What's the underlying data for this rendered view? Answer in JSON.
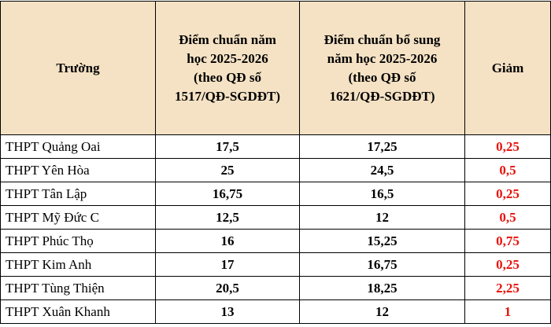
{
  "table": {
    "header": [
      [
        "Trường"
      ],
      [
        "Điểm chuẩn năm",
        "học 2025-2026",
        "(theo QĐ số",
        "1517/QĐ-SGDĐT)"
      ],
      [
        "Điểm chuẩn bổ sung",
        "năm học 2025-2026",
        "(theo QĐ số",
        "1621/QĐ-SGDĐT)"
      ],
      [
        "Giảm"
      ]
    ],
    "rows": [
      [
        "THPT Quảng Oai",
        "17,5",
        "17,25",
        "0,25"
      ],
      [
        "THPT Yên Hòa",
        "25",
        "24,5",
        "0,5"
      ],
      [
        "THPT Tân Lập",
        "16,75",
        "16,5",
        "0,25"
      ],
      [
        "THPT Mỹ Đức C",
        "12,5",
        "12",
        "0,5"
      ],
      [
        "THPT Phúc Thọ",
        "16",
        "15,25",
        "0,75"
      ],
      [
        "THPT Kim Anh",
        "17",
        "16,75",
        "0,25"
      ],
      [
        "THPT Tùng Thiện",
        "20,5",
        "18,25",
        "2,25"
      ],
      [
        "THPT Xuân Khanh",
        "13",
        "12",
        "1"
      ]
    ]
  }
}
